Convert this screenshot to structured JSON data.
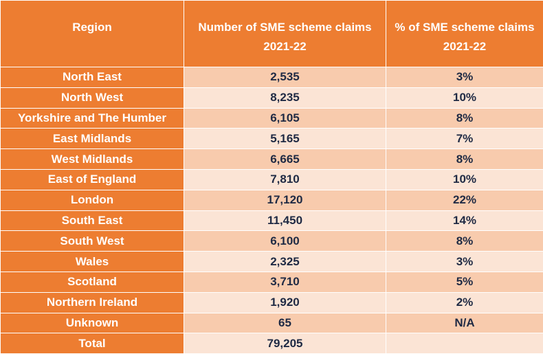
{
  "table": {
    "header": [
      "Region",
      "Number of SME scheme claims 2021-22",
      "% of SME scheme claims 2021-22"
    ],
    "rows": [
      [
        "North East",
        "2,535",
        "3%"
      ],
      [
        "North West",
        "8,235",
        "10%"
      ],
      [
        "Yorkshire and The Humber",
        "6,105",
        "8%"
      ],
      [
        "East Midlands",
        "5,165",
        "7%"
      ],
      [
        "West Midlands",
        "6,665",
        "8%"
      ],
      [
        "East of England",
        "7,810",
        "10%"
      ],
      [
        "London",
        "17,120",
        "22%"
      ],
      [
        "South East",
        "11,450",
        "14%"
      ],
      [
        "South West",
        "6,100",
        "8%"
      ],
      [
        "Wales",
        "2,325",
        "3%"
      ],
      [
        "Scotland",
        "3,710",
        "5%"
      ],
      [
        "Northern Ireland",
        "1,920",
        "2%"
      ],
      [
        "Unknown",
        "65",
        "N/A"
      ],
      [
        "Total",
        "79,205"
      ]
    ]
  }
}
